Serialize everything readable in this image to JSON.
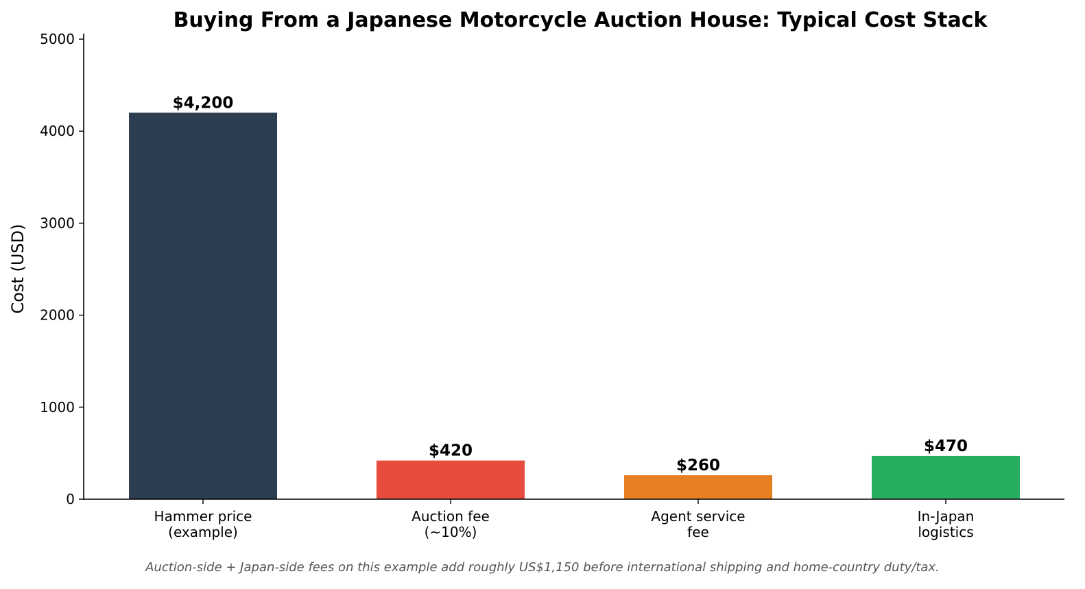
{
  "chart_data": {
    "type": "bar",
    "title": "Buying From a Japanese Motorcycle Auction House: Typical Cost Stack",
    "xlabel": "",
    "ylabel": "Cost (USD)",
    "ylim": [
      0,
      5000
    ],
    "yticks": [
      0,
      1000,
      2000,
      3000,
      4000,
      5000
    ],
    "categories": [
      [
        "Hammer price",
        "(example)"
      ],
      [
        "Auction fee",
        "(~10%)"
      ],
      [
        "Agent service",
        "fee"
      ],
      [
        "In-Japan",
        "logistics"
      ]
    ],
    "values": [
      4200,
      420,
      260,
      470
    ],
    "value_labels": [
      "$4,200",
      "$420",
      "$260",
      "$470"
    ],
    "colors": [
      "#2c3e50",
      "#e74c3c",
      "#e67e22",
      "#27ae60"
    ],
    "grid": false,
    "footnote": "Auction-side + Japan-side fees on this example add roughly US$1,150 before international shipping and home-country duty/tax."
  }
}
